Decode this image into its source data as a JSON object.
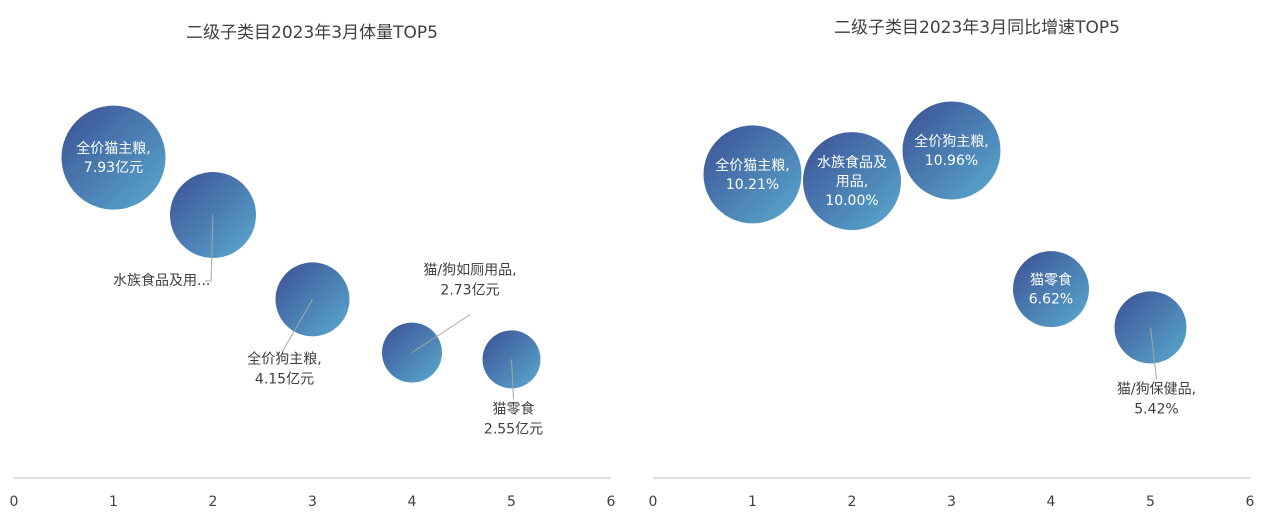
{
  "chart_data": [
    {
      "type": "bubble",
      "title": "二级子类目2023年3月体量TOP5",
      "xlim": [
        0,
        6
      ],
      "x_ticks": [
        "0",
        "1",
        "2",
        "3",
        "4",
        "5",
        "6"
      ],
      "y_axis_visible": false,
      "grid": false,
      "points": [
        {
          "x": 1,
          "y": 7.93,
          "category": "全价猫主粮",
          "value": "7.93亿元",
          "label_lines": [
            "全价猫主粮,",
            "7.93亿元"
          ],
          "label_inside": true
        },
        {
          "x": 2,
          "y": 6.4,
          "category": "水族食品及用...",
          "value": "",
          "label_lines": [
            "水族食品及用..."
          ],
          "label_inside": false
        },
        {
          "x": 3,
          "y": 4.15,
          "category": "全价狗主粮",
          "value": "4.15亿元",
          "label_lines": [
            "全价狗主粮,",
            "4.15亿元"
          ],
          "label_inside": false
        },
        {
          "x": 4,
          "y": 2.73,
          "category": "猫/狗如厕用品",
          "value": "2.73亿元",
          "label_lines": [
            "猫/狗如厕用品,",
            "2.73亿元"
          ],
          "label_inside": false
        },
        {
          "x": 5,
          "y": 2.55,
          "category": "猫零食",
          "value": "2.55亿元",
          "label_lines": [
            "猫零食",
            "2.55亿元"
          ],
          "label_inside": false
        }
      ]
    },
    {
      "type": "bubble",
      "title": "二级子类目2023年3月同比增速TOP5",
      "xlim": [
        0,
        6
      ],
      "x_ticks": [
        "0",
        "1",
        "2",
        "3",
        "4",
        "5",
        "6"
      ],
      "y_axis_visible": false,
      "grid": false,
      "points": [
        {
          "x": 1,
          "y": 10.21,
          "category": "全价猫主粮",
          "value": "10.21%",
          "label_lines": [
            "全价猫主粮,",
            "10.21%"
          ],
          "label_inside": true
        },
        {
          "x": 2,
          "y": 10.0,
          "category": "水族食品及用品",
          "value": "10.00%",
          "label_lines": [
            "水族食品及",
            "用品,",
            "10.00%"
          ],
          "label_inside": true
        },
        {
          "x": 3,
          "y": 10.96,
          "category": "全价狗主粮",
          "value": "10.96%",
          "label_lines": [
            "全价狗主粮,",
            "10.96%"
          ],
          "label_inside": true
        },
        {
          "x": 4,
          "y": 6.62,
          "category": "猫零食",
          "value": "6.62%",
          "label_lines": [
            "猫零食",
            "6.62%"
          ],
          "label_inside": true
        },
        {
          "x": 5,
          "y": 5.42,
          "category": "猫/狗保健品",
          "value": "5.42%",
          "label_lines": [
            "猫/狗保健品,",
            "5.42%"
          ],
          "label_inside": false
        }
      ]
    }
  ],
  "colors": {
    "bubble_gradient_start": "#3b4f94",
    "bubble_gradient_end": "#5aabcf",
    "axis_line": "#bfbfbf",
    "text": "#404040",
    "leader_line": "#a6a6a6"
  }
}
